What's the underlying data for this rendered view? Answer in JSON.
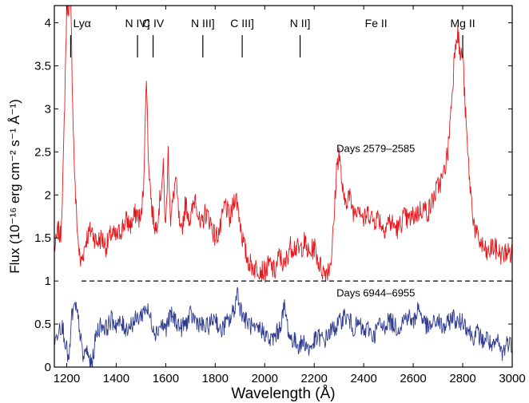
{
  "chart_data": {
    "type": "line",
    "xlabel": "Wavelength (Å)",
    "ylabel": "Flux (10⁻¹⁶ erg cm⁻² s⁻¹ Å⁻¹)",
    "xlim": [
      1150,
      3000
    ],
    "ylim": [
      0,
      4.2
    ],
    "xticks": [
      1200,
      1400,
      1600,
      1800,
      2000,
      2200,
      2400,
      2600,
      2800,
      3000
    ],
    "yticks": [
      0,
      0.5,
      1,
      1.5,
      2,
      2.5,
      3,
      3.5,
      4
    ],
    "xtick_labels": [
      "1200",
      "1400",
      "1600",
      "1800",
      "2000",
      "2200",
      "2400",
      "2600",
      "2800",
      "3000"
    ],
    "ytick_labels": [
      "0",
      "0.5",
      "1",
      "1.5",
      "2",
      "2.5",
      "3",
      "3.5",
      "4"
    ],
    "reference_line": {
      "y": 1,
      "style": "dashed",
      "x_range": [
        1260,
        3000
      ]
    },
    "line_ids": [
      {
        "label": "Lyα",
        "x": 1216
      },
      {
        "label": "N IV]",
        "x": 1486
      },
      {
        "label": "C IV",
        "x": 1549
      },
      {
        "label": "N III]",
        "x": 1750
      },
      {
        "label": "C III]",
        "x": 1909
      },
      {
        "label": "N II]",
        "x": 2143
      },
      {
        "label": "Fe II",
        "x": 2450
      },
      {
        "label": "Mg II",
        "x": 2800
      }
    ],
    "series": [
      {
        "name": "Days 2579–2585",
        "label_at": [
          2290,
          2.5
        ],
        "color": "#e8161b",
        "x": [
          1155,
          1165,
          1175,
          1185,
          1195,
          1200,
          1205,
          1210,
          1216,
          1222,
          1228,
          1235,
          1245,
          1255,
          1265,
          1280,
          1300,
          1320,
          1340,
          1360,
          1380,
          1400,
          1420,
          1440,
          1460,
          1480,
          1500,
          1510,
          1518,
          1522,
          1528,
          1535,
          1545,
          1560,
          1575,
          1590,
          1600,
          1610,
          1620,
          1640,
          1660,
          1680,
          1700,
          1720,
          1740,
          1760,
          1780,
          1800,
          1820,
          1840,
          1860,
          1880,
          1890,
          1900,
          1910,
          1925,
          1940,
          1960,
          1980,
          2000,
          2020,
          2040,
          2060,
          2080,
          2100,
          2120,
          2140,
          2160,
          2180,
          2200,
          2220,
          2240,
          2260,
          2270,
          2280,
          2290,
          2300,
          2320,
          2340,
          2360,
          2380,
          2400,
          2420,
          2440,
          2460,
          2480,
          2500,
          2520,
          2540,
          2560,
          2580,
          2600,
          2620,
          2640,
          2660,
          2680,
          2700,
          2720,
          2740,
          2760,
          2770,
          2780,
          2790,
          2800,
          2810,
          2820,
          2830,
          2840,
          2850,
          2860,
          2870,
          2880,
          2890,
          2900,
          2920,
          2940,
          2960,
          2980,
          3000
        ],
        "y": [
          1.4,
          1.6,
          1.5,
          2.2,
          3.5,
          4.2,
          4.2,
          4.2,
          4.2,
          3.4,
          2.6,
          2.0,
          1.5,
          1.2,
          1.3,
          1.5,
          1.6,
          1.45,
          1.5,
          1.4,
          1.55,
          1.5,
          1.6,
          1.7,
          1.65,
          1.8,
          1.7,
          2.1,
          2.9,
          3.45,
          2.6,
          2.2,
          1.8,
          1.6,
          1.9,
          2.3,
          1.6,
          2.5,
          1.7,
          2.2,
          1.5,
          1.9,
          1.7,
          2.0,
          1.6,
          1.8,
          1.7,
          1.5,
          1.6,
          1.9,
          1.7,
          2.0,
          1.9,
          1.7,
          1.5,
          1.3,
          1.2,
          1.15,
          1.15,
          1.1,
          1.2,
          1.1,
          1.3,
          1.15,
          1.4,
          1.4,
          1.35,
          1.45,
          1.3,
          1.4,
          1.2,
          1.1,
          1.15,
          1.3,
          1.7,
          2.3,
          2.5,
          1.9,
          2.0,
          1.8,
          1.9,
          1.7,
          1.8,
          1.7,
          1.75,
          1.6,
          1.7,
          1.65,
          1.6,
          1.75,
          1.7,
          1.75,
          1.8,
          1.85,
          1.8,
          1.95,
          2.1,
          2.2,
          2.5,
          3.3,
          3.8,
          3.9,
          3.6,
          3.65,
          3.0,
          2.5,
          2.1,
          1.8,
          1.6,
          1.5,
          1.45,
          1.4,
          1.35,
          1.3,
          1.4,
          1.35,
          1.3,
          1.35,
          1.3
        ]
      },
      {
        "name": "Days 6944–6955",
        "label_at": [
          2290,
          0.82
        ],
        "color": "#2e3b8f",
        "x": [
          1155,
          1170,
          1185,
          1200,
          1210,
          1220,
          1235,
          1250,
          1265,
          1280,
          1300,
          1320,
          1340,
          1360,
          1380,
          1400,
          1420,
          1440,
          1460,
          1480,
          1500,
          1520,
          1540,
          1560,
          1580,
          1600,
          1620,
          1640,
          1660,
          1680,
          1700,
          1720,
          1740,
          1760,
          1780,
          1800,
          1820,
          1840,
          1860,
          1880,
          1890,
          1900,
          1920,
          1940,
          1960,
          1980,
          2000,
          2020,
          2040,
          2060,
          2080,
          2100,
          2120,
          2140,
          2160,
          2180,
          2200,
          2220,
          2240,
          2260,
          2280,
          2300,
          2320,
          2340,
          2360,
          2380,
          2400,
          2420,
          2440,
          2460,
          2480,
          2500,
          2520,
          2540,
          2560,
          2580,
          2600,
          2620,
          2640,
          2660,
          2680,
          2700,
          2720,
          2740,
          2760,
          2780,
          2800,
          2820,
          2840,
          2860,
          2880,
          2900,
          2920,
          2940,
          2960,
          2980,
          3000
        ],
        "y": [
          0.3,
          0.5,
          0.45,
          0.2,
          0.05,
          0.6,
          0.7,
          0.5,
          0.1,
          0.2,
          0.0,
          0.4,
          0.5,
          0.45,
          0.55,
          0.5,
          0.5,
          0.45,
          0.5,
          0.55,
          0.6,
          0.7,
          0.55,
          0.4,
          0.5,
          0.45,
          0.6,
          0.55,
          0.45,
          0.5,
          0.6,
          0.55,
          0.5,
          0.45,
          0.5,
          0.6,
          0.4,
          0.5,
          0.55,
          0.7,
          0.9,
          0.7,
          0.55,
          0.5,
          0.4,
          0.45,
          0.4,
          0.3,
          0.35,
          0.45,
          0.7,
          0.35,
          0.3,
          0.25,
          0.3,
          0.2,
          0.3,
          0.35,
          0.3,
          0.4,
          0.45,
          0.5,
          0.6,
          0.55,
          0.45,
          0.5,
          0.4,
          0.45,
          0.35,
          0.5,
          0.45,
          0.55,
          0.5,
          0.45,
          0.55,
          0.6,
          0.5,
          0.7,
          0.55,
          0.45,
          0.5,
          0.55,
          0.45,
          0.5,
          0.6,
          0.5,
          0.55,
          0.45,
          0.35,
          0.4,
          0.3,
          0.35,
          0.2,
          0.3,
          0.15,
          0.3,
          0.25
        ]
      }
    ]
  }
}
